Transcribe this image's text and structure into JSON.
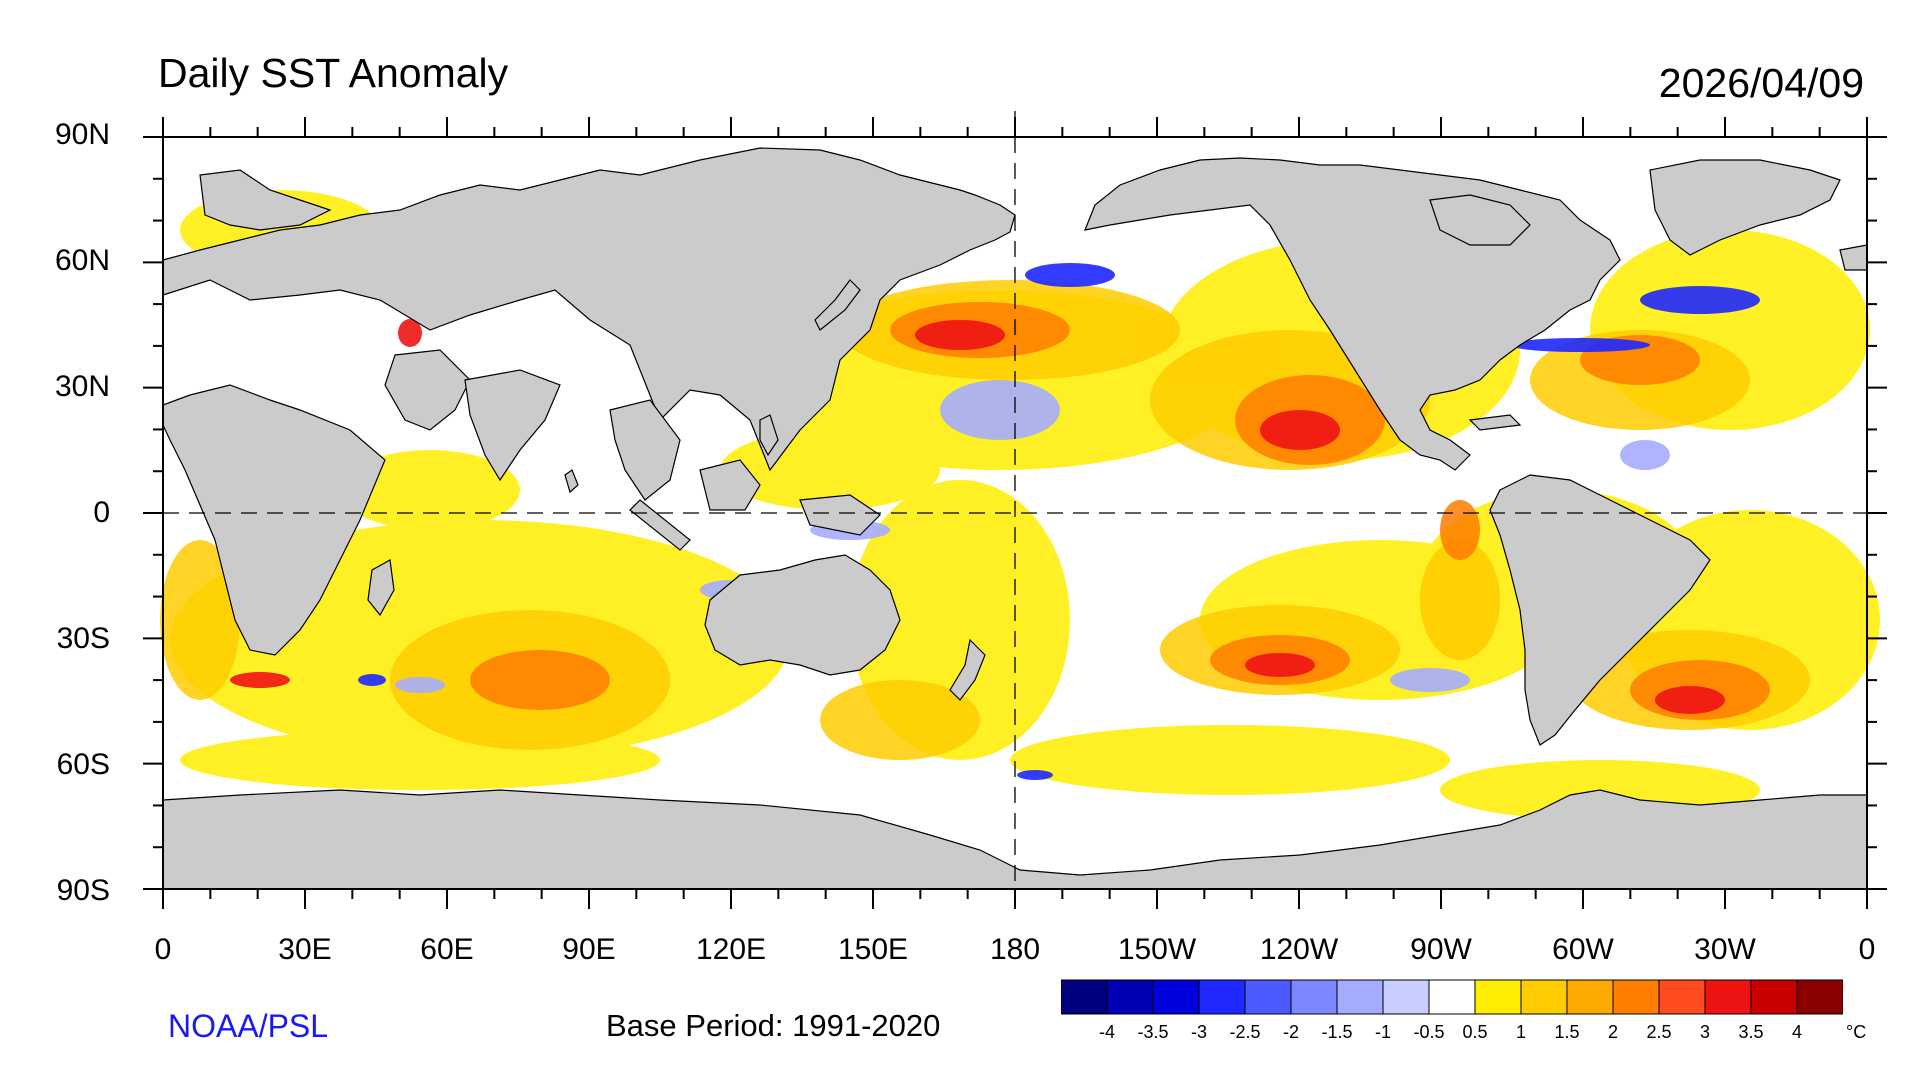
{
  "title": "Daily SST Anomaly",
  "date": "2026/04/09",
  "lat_labels": [
    "90N",
    "60N",
    "30N",
    "0",
    "30S",
    "60S",
    "90S"
  ],
  "lon_labels": [
    "0",
    "30E",
    "60E",
    "90E",
    "120E",
    "150E",
    "180",
    "150W",
    "120W",
    "90W",
    "60W",
    "30W",
    "0"
  ],
  "credit": "NOAA/PSL",
  "base_period": "Base Period: 1991-2020",
  "colorbar": {
    "labels": [
      "-4",
      "-3.5",
      "-3",
      "-2.5",
      "-2",
      "-1.5",
      "-1",
      "-0.5",
      "0.5",
      "1",
      "1.5",
      "2",
      "2.5",
      "3",
      "3.5",
      "4"
    ],
    "colors": [
      "#000080",
      "#0000b4",
      "#0000dc",
      "#1e28ff",
      "#4b5aff",
      "#7d87ff",
      "#a5acff",
      "#c8cdff",
      "#ffffff",
      "#ffee00",
      "#ffcc00",
      "#ffaa00",
      "#ff7d00",
      "#ff4b1e",
      "#ee1414",
      "#c80000",
      "#8b0000"
    ],
    "unit": "°C"
  },
  "colors": {
    "land": "#cbcbcb",
    "ocean_base": "#ffffff",
    "credit": "#1a1aee"
  }
}
